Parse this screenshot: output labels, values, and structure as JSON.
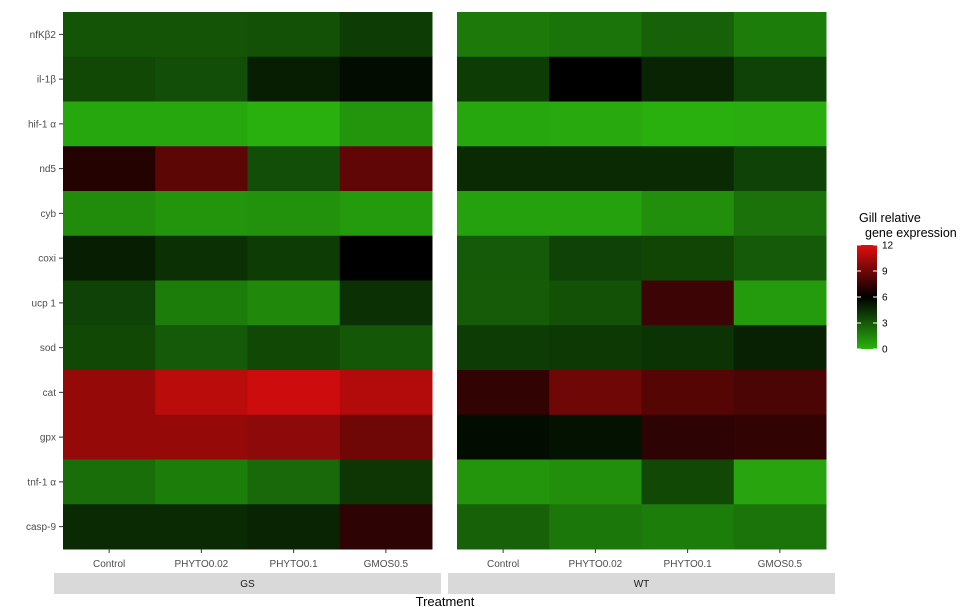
{
  "chart_data": {
    "type": "heatmap",
    "xlabel": "Treatment",
    "ylabel": "",
    "x_categories": [
      "Control",
      "PHYTO0.02",
      "PHYTO0.1",
      "GMOS0.5"
    ],
    "y_categories": [
      "nfKβ2",
      "il-1β",
      "hif-1 α",
      "nd5",
      "cyb",
      "coxi",
      "ucp 1",
      "sod",
      "cat",
      "gpx",
      "tnf-1 α",
      "casp-9"
    ],
    "facets": [
      {
        "name": "GS",
        "values": [
          [
            3.2,
            3.2,
            3.3,
            4.0
          ],
          [
            3.6,
            3.4,
            5.0,
            5.6
          ],
          [
            0.4,
            0.4,
            0.1,
            1.0
          ],
          [
            7.0,
            8.5,
            3.4,
            8.6
          ],
          [
            1.3,
            1.0,
            1.1,
            0.8
          ],
          [
            5.0,
            4.4,
            4.0,
            6.0
          ],
          [
            3.8,
            1.8,
            1.4,
            4.4
          ],
          [
            3.6,
            3.0,
            3.6,
            3.1
          ],
          [
            10.0,
            11.0,
            11.5,
            10.8
          ],
          [
            10.0,
            10.0,
            9.8,
            9.0
          ],
          [
            2.3,
            1.8,
            2.5,
            4.2
          ],
          [
            4.6,
            4.6,
            4.8,
            7.2
          ]
        ]
      },
      {
        "name": "WT",
        "values": [
          [
            1.9,
            2.1,
            2.7,
            1.8
          ],
          [
            4.0,
            6.0,
            4.8,
            3.8
          ],
          [
            0.4,
            0.3,
            0.1,
            0.2
          ],
          [
            4.6,
            4.6,
            4.6,
            3.8
          ],
          [
            0.6,
            0.6,
            1.2,
            2.2
          ],
          [
            3.0,
            3.8,
            3.7,
            3.0
          ],
          [
            2.9,
            3.3,
            7.6,
            0.8
          ],
          [
            4.0,
            4.1,
            4.3,
            4.9
          ],
          [
            7.3,
            9.0,
            8.3,
            8.0
          ],
          [
            5.6,
            5.4,
            7.2,
            7.3
          ],
          [
            1.0,
            1.2,
            3.6,
            0.5
          ],
          [
            2.7,
            2.0,
            1.8,
            2.1
          ]
        ]
      }
    ],
    "legend": {
      "title_line1": "Gill relative",
      "title_line2": "gene expression",
      "min": 0,
      "max": 12,
      "ticks": [
        0,
        3,
        6,
        9,
        12
      ],
      "colors": {
        "low": "#2ab30f",
        "mid": "#000000",
        "high": "#e00e0e"
      },
      "midpoint": 6,
      "position": "right"
    }
  }
}
